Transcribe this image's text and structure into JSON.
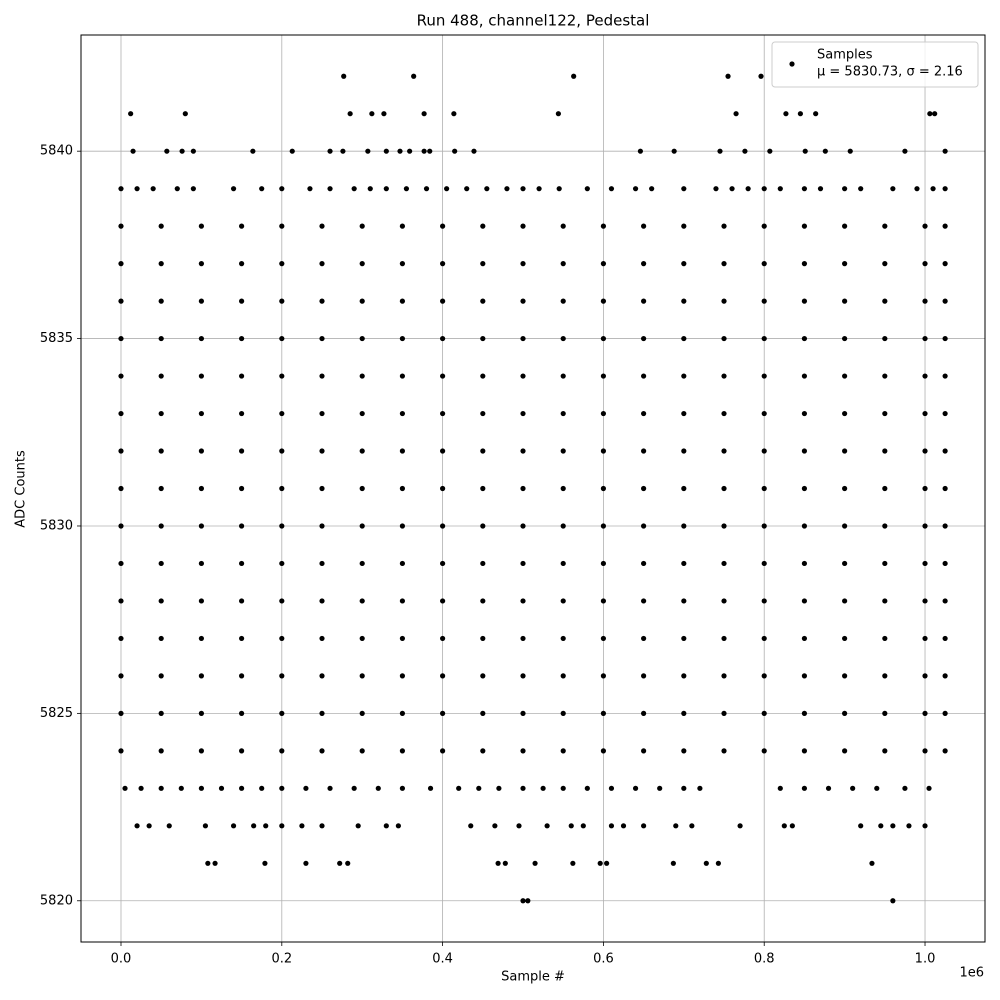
{
  "chart_data": {
    "type": "scatter",
    "title": "Run 488, channel122, Pedestal",
    "xlabel": "Sample #",
    "ylabel": "ADC Counts",
    "x_offset_label": "1e6",
    "xlim": [
      -49750,
      1074600
    ],
    "ylim": [
      5818.9,
      5843.1
    ],
    "xticks": [
      {
        "value": 0,
        "label": "0.0"
      },
      {
        "value": 200000,
        "label": "0.2"
      },
      {
        "value": 400000,
        "label": "0.4"
      },
      {
        "value": 600000,
        "label": "0.6"
      },
      {
        "value": 800000,
        "label": "0.8"
      },
      {
        "value": 1000000,
        "label": "1.0"
      }
    ],
    "yticks": [
      5820,
      5825,
      5830,
      5835,
      5840
    ],
    "grid": true,
    "legend_position": "upper right",
    "series": [
      {
        "name": "Samples",
        "note": "μ = 5830.73, σ = 2.16",
        "color": "#000000",
        "x": [
          277000,
          364000,
          563000,
          755000,
          796000,
          12000,
          80000,
          285000,
          312000,
          327000,
          377000,
          414000,
          544000,
          765000,
          827000,
          845000,
          864000,
          1006000,
          1012000,
          15000,
          57000,
          76000,
          90000,
          164000,
          213000,
          260000,
          276000,
          307000,
          330000,
          347000,
          359000,
          377000,
          384000,
          415000,
          439000,
          646000,
          688000,
          745000,
          776000,
          807000,
          851000,
          876000,
          907000,
          975000,
          1025000,
          0,
          20000,
          40000,
          70000,
          90000,
          140000,
          175000,
          200000,
          235000,
          260000,
          290000,
          310000,
          330000,
          355000,
          380000,
          405000,
          430000,
          455000,
          480000,
          500000,
          520000,
          545000,
          580000,
          610000,
          640000,
          660000,
          700000,
          740000,
          760000,
          780000,
          800000,
          820000,
          850000,
          870000,
          900000,
          920000,
          960000,
          990000,
          1010000,
          1025000,
          0,
          50000,
          100000,
          150000,
          200000,
          250000,
          300000,
          350000,
          400000,
          450000,
          500000,
          550000,
          600000,
          650000,
          700000,
          750000,
          800000,
          850000,
          900000,
          950000,
          1000000,
          1025000,
          0,
          50000,
          100000,
          150000,
          200000,
          250000,
          300000,
          350000,
          400000,
          450000,
          500000,
          550000,
          600000,
          650000,
          700000,
          750000,
          800000,
          850000,
          900000,
          950000,
          1000000,
          1025000,
          0,
          50000,
          100000,
          150000,
          200000,
          250000,
          300000,
          350000,
          400000,
          450000,
          500000,
          550000,
          600000,
          650000,
          700000,
          750000,
          800000,
          850000,
          900000,
          950000,
          1000000,
          1025000,
          0,
          50000,
          100000,
          150000,
          200000,
          250000,
          300000,
          350000,
          400000,
          450000,
          500000,
          550000,
          600000,
          650000,
          700000,
          750000,
          800000,
          850000,
          900000,
          950000,
          1000000,
          1025000,
          0,
          50000,
          100000,
          150000,
          200000,
          250000,
          300000,
          350000,
          400000,
          450000,
          500000,
          550000,
          600000,
          650000,
          700000,
          750000,
          800000,
          850000,
          900000,
          950000,
          1000000,
          1025000,
          0,
          50000,
          100000,
          150000,
          200000,
          250000,
          300000,
          350000,
          400000,
          450000,
          500000,
          550000,
          600000,
          650000,
          700000,
          750000,
          800000,
          850000,
          900000,
          950000,
          1000000,
          1025000,
          0,
          50000,
          100000,
          150000,
          200000,
          250000,
          300000,
          350000,
          400000,
          450000,
          500000,
          550000,
          600000,
          650000,
          700000,
          750000,
          800000,
          850000,
          900000,
          950000,
          1000000,
          1025000,
          0,
          50000,
          100000,
          150000,
          200000,
          250000,
          300000,
          350000,
          400000,
          450000,
          500000,
          550000,
          600000,
          650000,
          700000,
          750000,
          800000,
          850000,
          900000,
          950000,
          1000000,
          1025000,
          0,
          50000,
          100000,
          150000,
          200000,
          250000,
          300000,
          350000,
          400000,
          450000,
          500000,
          550000,
          600000,
          650000,
          700000,
          750000,
          800000,
          850000,
          900000,
          950000,
          1000000,
          1025000,
          0,
          50000,
          100000,
          150000,
          200000,
          250000,
          300000,
          350000,
          400000,
          450000,
          500000,
          550000,
          600000,
          650000,
          700000,
          750000,
          800000,
          850000,
          900000,
          950000,
          1000000,
          1025000,
          0,
          50000,
          100000,
          150000,
          200000,
          250000,
          300000,
          350000,
          400000,
          450000,
          500000,
          550000,
          600000,
          650000,
          700000,
          750000,
          800000,
          850000,
          900000,
          950000,
          1000000,
          1025000,
          0,
          50000,
          100000,
          150000,
          200000,
          250000,
          300000,
          350000,
          400000,
          450000,
          500000,
          550000,
          600000,
          650000,
          700000,
          750000,
          800000,
          850000,
          900000,
          950000,
          1000000,
          1025000,
          0,
          50000,
          100000,
          150000,
          200000,
          250000,
          300000,
          350000,
          400000,
          450000,
          500000,
          550000,
          600000,
          650000,
          700000,
          750000,
          800000,
          850000,
          900000,
          950000,
          1000000,
          1025000,
          0,
          50000,
          100000,
          150000,
          200000,
          250000,
          300000,
          350000,
          400000,
          450000,
          500000,
          550000,
          600000,
          650000,
          700000,
          750000,
          800000,
          850000,
          900000,
          950000,
          1000000,
          1025000,
          0,
          50000,
          100000,
          150000,
          200000,
          250000,
          300000,
          350000,
          400000,
          450000,
          500000,
          550000,
          600000,
          650000,
          700000,
          750000,
          800000,
          850000,
          900000,
          950000,
          1000000,
          1025000,
          5000,
          25000,
          50000,
          75000,
          100000,
          125000,
          150000,
          175000,
          200000,
          230000,
          260000,
          290000,
          320000,
          350000,
          385000,
          420000,
          445000,
          470000,
          500000,
          525000,
          550000,
          580000,
          610000,
          640000,
          670000,
          700000,
          720000,
          820000,
          850000,
          880000,
          910000,
          940000,
          975000,
          1005000,
          20000,
          35000,
          60000,
          105000,
          140000,
          165000,
          180000,
          200000,
          225000,
          250000,
          295000,
          330000,
          345000,
          435000,
          465000,
          495000,
          530000,
          560000,
          575000,
          610000,
          625000,
          650000,
          690000,
          710000,
          770000,
          825000,
          835000,
          920000,
          945000,
          960000,
          980000,
          1000000,
          108000,
          117000,
          179000,
          230000,
          272000,
          282000,
          469000,
          478000,
          515000,
          562000,
          596000,
          604000,
          687000,
          728000,
          743000,
          934000,
          500000,
          506000,
          960000
        ],
        "values": [
          5842,
          5842,
          5842,
          5842,
          5842,
          5841,
          5841,
          5841,
          5841,
          5841,
          5841,
          5841,
          5841,
          5841,
          5841,
          5841,
          5841,
          5841,
          5841,
          5840,
          5840,
          5840,
          5840,
          5840,
          5840,
          5840,
          5840,
          5840,
          5840,
          5840,
          5840,
          5840,
          5840,
          5840,
          5840,
          5840,
          5840,
          5840,
          5840,
          5840,
          5840,
          5840,
          5840,
          5840,
          5840,
          5839,
          5839,
          5839,
          5839,
          5839,
          5839,
          5839,
          5839,
          5839,
          5839,
          5839,
          5839,
          5839,
          5839,
          5839,
          5839,
          5839,
          5839,
          5839,
          5839,
          5839,
          5839,
          5839,
          5839,
          5839,
          5839,
          5839,
          5839,
          5839,
          5839,
          5839,
          5839,
          5839,
          5839,
          5839,
          5839,
          5839,
          5839,
          5839,
          5839,
          5838,
          5838,
          5838,
          5838,
          5838,
          5838,
          5838,
          5838,
          5838,
          5838,
          5838,
          5838,
          5838,
          5838,
          5838,
          5838,
          5838,
          5838,
          5838,
          5838,
          5838,
          5838,
          5837,
          5837,
          5837,
          5837,
          5837,
          5837,
          5837,
          5837,
          5837,
          5837,
          5837,
          5837,
          5837,
          5837,
          5837,
          5837,
          5837,
          5837,
          5837,
          5837,
          5837,
          5837,
          5836,
          5836,
          5836,
          5836,
          5836,
          5836,
          5836,
          5836,
          5836,
          5836,
          5836,
          5836,
          5836,
          5836,
          5836,
          5836,
          5836,
          5836,
          5836,
          5836,
          5836,
          5836,
          5835,
          5835,
          5835,
          5835,
          5835,
          5835,
          5835,
          5835,
          5835,
          5835,
          5835,
          5835,
          5835,
          5835,
          5835,
          5835,
          5835,
          5835,
          5835,
          5835,
          5835,
          5835,
          5834,
          5834,
          5834,
          5834,
          5834,
          5834,
          5834,
          5834,
          5834,
          5834,
          5834,
          5834,
          5834,
          5834,
          5834,
          5834,
          5834,
          5834,
          5834,
          5834,
          5834,
          5834,
          5833,
          5833,
          5833,
          5833,
          5833,
          5833,
          5833,
          5833,
          5833,
          5833,
          5833,
          5833,
          5833,
          5833,
          5833,
          5833,
          5833,
          5833,
          5833,
          5833,
          5833,
          5833,
          5832,
          5832,
          5832,
          5832,
          5832,
          5832,
          5832,
          5832,
          5832,
          5832,
          5832,
          5832,
          5832,
          5832,
          5832,
          5832,
          5832,
          5832,
          5832,
          5832,
          5832,
          5832,
          5831,
          5831,
          5831,
          5831,
          5831,
          5831,
          5831,
          5831,
          5831,
          5831,
          5831,
          5831,
          5831,
          5831,
          5831,
          5831,
          5831,
          5831,
          5831,
          5831,
          5831,
          5831,
          5830,
          5830,
          5830,
          5830,
          5830,
          5830,
          5830,
          5830,
          5830,
          5830,
          5830,
          5830,
          5830,
          5830,
          5830,
          5830,
          5830,
          5830,
          5830,
          5830,
          5830,
          5830,
          5829,
          5829,
          5829,
          5829,
          5829,
          5829,
          5829,
          5829,
          5829,
          5829,
          5829,
          5829,
          5829,
          5829,
          5829,
          5829,
          5829,
          5829,
          5829,
          5829,
          5829,
          5829,
          5828,
          5828,
          5828,
          5828,
          5828,
          5828,
          5828,
          5828,
          5828,
          5828,
          5828,
          5828,
          5828,
          5828,
          5828,
          5828,
          5828,
          5828,
          5828,
          5828,
          5828,
          5828,
          5827,
          5827,
          5827,
          5827,
          5827,
          5827,
          5827,
          5827,
          5827,
          5827,
          5827,
          5827,
          5827,
          5827,
          5827,
          5827,
          5827,
          5827,
          5827,
          5827,
          5827,
          5827,
          5826,
          5826,
          5826,
          5826,
          5826,
          5826,
          5826,
          5826,
          5826,
          5826,
          5826,
          5826,
          5826,
          5826,
          5826,
          5826,
          5826,
          5826,
          5826,
          5826,
          5826,
          5826,
          5825,
          5825,
          5825,
          5825,
          5825,
          5825,
          5825,
          5825,
          5825,
          5825,
          5825,
          5825,
          5825,
          5825,
          5825,
          5825,
          5825,
          5825,
          5825,
          5825,
          5825,
          5825,
          5824,
          5824,
          5824,
          5824,
          5824,
          5824,
          5824,
          5824,
          5824,
          5824,
          5824,
          5824,
          5824,
          5824,
          5824,
          5824,
          5824,
          5824,
          5824,
          5824,
          5824,
          5824,
          5823,
          5823,
          5823,
          5823,
          5823,
          5823,
          5823,
          5823,
          5823,
          5823,
          5823,
          5823,
          5823,
          5823,
          5823,
          5823,
          5823,
          5823,
          5823,
          5823,
          5823,
          5823,
          5823,
          5823,
          5823,
          5823,
          5823,
          5823,
          5823,
          5823,
          5823,
          5823,
          5823,
          5823,
          5822,
          5822,
          5822,
          5822,
          5822,
          5822,
          5822,
          5822,
          5822,
          5822,
          5822,
          5822,
          5822,
          5822,
          5822,
          5822,
          5822,
          5822,
          5822,
          5822,
          5822,
          5822,
          5822,
          5822,
          5822,
          5822,
          5822,
          5822,
          5822,
          5822,
          5822,
          5822,
          5821,
          5821,
          5821,
          5821,
          5821,
          5821,
          5821,
          5821,
          5821,
          5821,
          5821,
          5821,
          5821,
          5821,
          5821,
          5821,
          5820,
          5820,
          5820
        ]
      }
    ]
  }
}
